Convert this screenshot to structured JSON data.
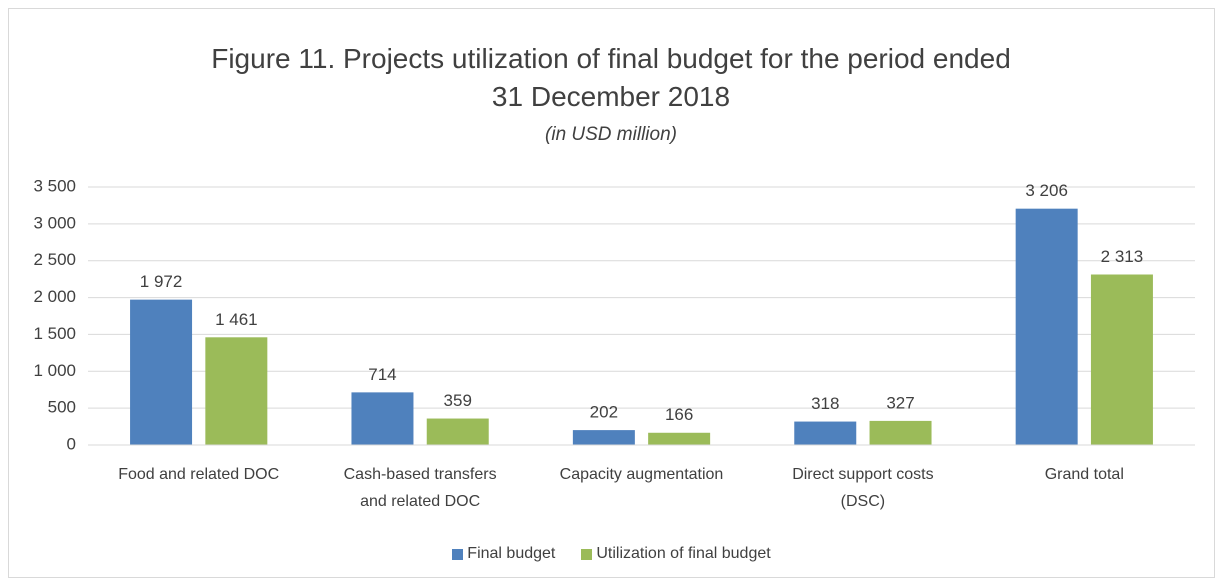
{
  "chart_data": {
    "type": "bar",
    "title": "Figure 11. Projects utilization of final budget for the period ended 31 December 2018",
    "subtitle": "(in USD million)",
    "categories": [
      "Food and related DOC",
      "Cash-based transfers and related DOC",
      "Capacity augmentation",
      "Direct support costs (DSC)",
      "Grand total"
    ],
    "series": [
      {
        "name": "Final budget",
        "color": "#4f81bd",
        "values": [
          1972,
          714,
          202,
          318,
          3206
        ],
        "value_labels": [
          "1 972",
          "714",
          "202",
          "318",
          "3 206"
        ]
      },
      {
        "name": "Utilization of final budget",
        "color": "#9bbb59",
        "values": [
          1461,
          359,
          166,
          327,
          2313
        ],
        "value_labels": [
          "1 461",
          "359",
          "166",
          "327",
          "2 313"
        ]
      }
    ],
    "ylim": [
      0,
      3500
    ],
    "yticks": [
      0,
      500,
      {
        "value": 1000,
        "label": "1 000"
      },
      {
        "value": 1500,
        "label": "1 500"
      },
      {
        "value": 2000,
        "label": "2 000"
      },
      {
        "value": 2500,
        "label": "2 500"
      },
      {
        "value": 3000,
        "label": "3 000"
      },
      {
        "value": 3500,
        "label": "3 500"
      }
    ],
    "grid": true,
    "legend": "bottom"
  }
}
